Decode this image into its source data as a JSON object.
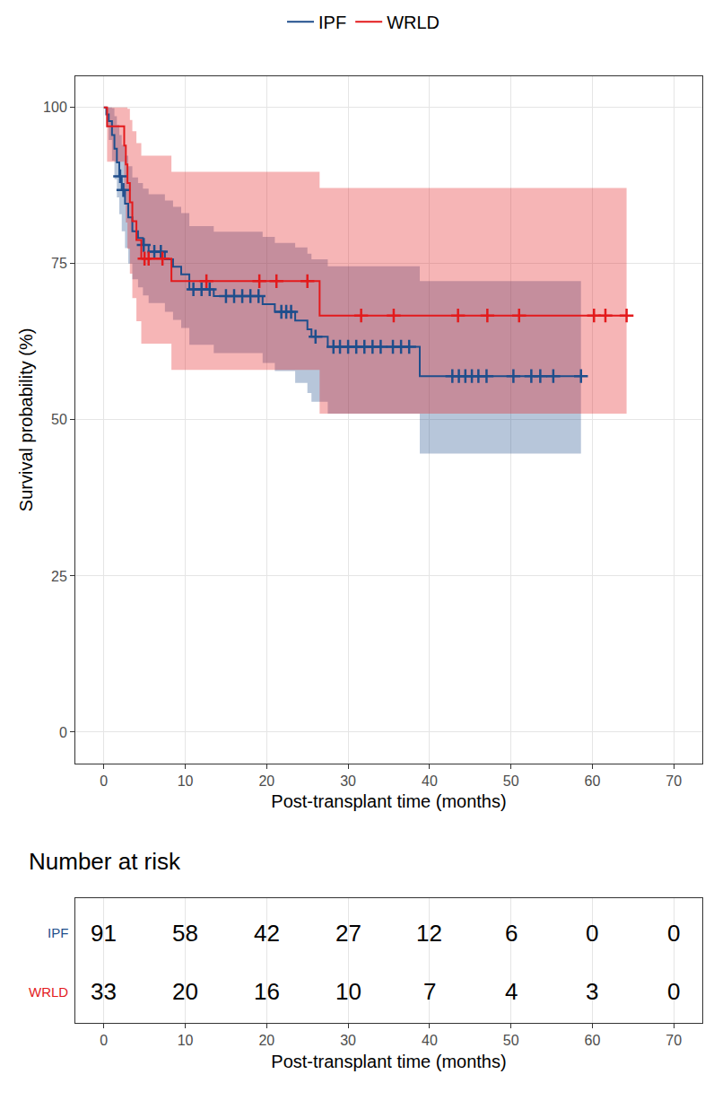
{
  "chart_data": {
    "type": "kaplan-meier",
    "x_label": "Post-transplant time (months)",
    "y_label": "Survival probability (%)",
    "xlim": [
      -3.5,
      73.5
    ],
    "ylim": [
      -5,
      105
    ],
    "xticks": [
      0,
      10,
      20,
      30,
      40,
      50,
      60,
      70
    ],
    "yticks": [
      0,
      25,
      50,
      75,
      100
    ],
    "grid": true,
    "legend": "top",
    "series": [
      {
        "name": "IPF",
        "color": "#1f4e8c",
        "marker": "cross",
        "x": [
          0,
          0.3,
          0.6,
          1.0,
          1.3,
          1.6,
          1.9,
          2.2,
          2.6,
          3.0,
          3.5,
          4.2,
          4.8,
          5.5,
          7.5,
          8.5,
          9.5,
          10.5,
          13.5,
          19.5,
          21.0,
          23.5,
          25.0,
          25.5,
          27.5,
          38.8,
          58.6
        ],
        "values": [
          100,
          98.9,
          97.8,
          95.6,
          93.4,
          91.2,
          89.0,
          86.8,
          84.6,
          82.4,
          80.2,
          79.1,
          78.0,
          76.9,
          75.7,
          74.5,
          73.3,
          70.9,
          69.8,
          68.5,
          67.3,
          65.9,
          64.5,
          63.3,
          61.7,
          57.0,
          57.0
        ],
        "lower": [
          100,
          96.8,
          94.8,
          91.5,
          88.5,
          85.6,
          82.9,
          80.2,
          77.5,
          75.0,
          72.5,
          71.2,
          69.9,
          68.7,
          67.3,
          66.0,
          64.7,
          62.0,
          60.7,
          59.1,
          57.8,
          55.9,
          54.3,
          52.9,
          51.0,
          44.6,
          44.6
        ],
        "upper": [
          100,
          100,
          100,
          99.9,
          98.6,
          97.2,
          95.6,
          94.0,
          92.3,
          90.6,
          88.8,
          87.9,
          87.0,
          86.1,
          85.1,
          84.1,
          83.1,
          81.0,
          80.1,
          79.3,
          78.3,
          77.6,
          76.6,
          75.7,
          74.6,
          72.2,
          72.2
        ],
        "censor_x": [
          2.0,
          2.4,
          4.9,
          6.2,
          7.0,
          11,
          12,
          13,
          15,
          16,
          17,
          18,
          19,
          21.8,
          22.4,
          23.0,
          26.0,
          28.2,
          29,
          30,
          31,
          32,
          33,
          34,
          35.5,
          36.5,
          37.5,
          42.8,
          43.6,
          44.4,
          45.2,
          46,
          47,
          50.3,
          52.5,
          53.6,
          55.2,
          58.6
        ],
        "censor_values": [
          89.0,
          86.8,
          78.0,
          76.9,
          76.9,
          70.9,
          70.9,
          70.9,
          69.8,
          69.8,
          69.8,
          69.8,
          69.8,
          67.3,
          67.3,
          67.3,
          63.3,
          61.7,
          61.7,
          61.7,
          61.7,
          61.7,
          61.7,
          61.7,
          61.7,
          61.7,
          61.7,
          57.0,
          57.0,
          57.0,
          57.0,
          57.0,
          57.0,
          57.0,
          57.0,
          57.0,
          57.0,
          57.0
        ]
      },
      {
        "name": "WRLD",
        "color": "#e31a1c",
        "marker": "cross",
        "x": [
          0,
          0.4,
          2.5,
          2.7,
          2.9,
          3.2,
          3.5,
          4.0,
          4.6,
          8.3,
          26.5,
          64.2
        ],
        "values": [
          100,
          97.0,
          93.9,
          90.9,
          87.9,
          84.8,
          81.8,
          78.8,
          75.8,
          72.2,
          66.7,
          66.7
        ],
        "lower": [
          100,
          91.3,
          86.1,
          81.6,
          77.4,
          73.4,
          69.5,
          65.8,
          62.2,
          58.0,
          51.0,
          51.0
        ],
        "upper": [
          100,
          100,
          100,
          100,
          99.8,
          98.0,
          96.2,
          94.3,
          92.3,
          89.7,
          87.1,
          87.1
        ],
        "censor_x": [
          5.0,
          5.5,
          7.2,
          12.6,
          19.1,
          21.2,
          25.0,
          31.6,
          35.6,
          43.5,
          47.1,
          51.0,
          60.2,
          61.6,
          64.2
        ],
        "censor_values": [
          75.8,
          75.8,
          75.8,
          72.2,
          72.2,
          72.2,
          72.2,
          66.7,
          66.7,
          66.7,
          66.7,
          66.7,
          66.7,
          66.7,
          66.7
        ]
      }
    ],
    "risk_table": {
      "title": "Number at risk",
      "times": [
        0,
        10,
        20,
        30,
        40,
        50,
        60,
        70
      ],
      "rows": [
        {
          "name": "IPF",
          "values": [
            91,
            58,
            42,
            27,
            12,
            6,
            0,
            0
          ]
        },
        {
          "name": "WRLD",
          "values": [
            33,
            20,
            16,
            10,
            7,
            4,
            3,
            0
          ]
        }
      ]
    }
  }
}
